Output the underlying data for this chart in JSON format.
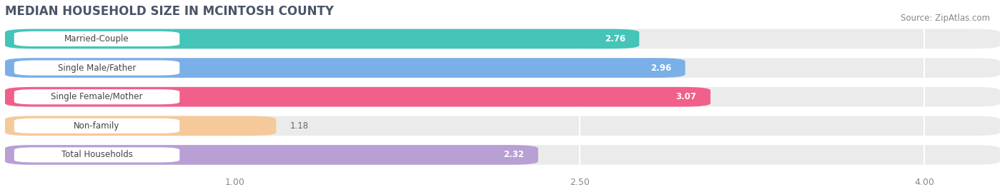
{
  "title": "MEDIAN HOUSEHOLD SIZE IN MCINTOSH COUNTY",
  "source": "Source: ZipAtlas.com",
  "categories": [
    "Married-Couple",
    "Single Male/Father",
    "Single Female/Mother",
    "Non-family",
    "Total Households"
  ],
  "values": [
    2.76,
    2.96,
    3.07,
    1.18,
    2.32
  ],
  "bar_colors": [
    "#45c4b8",
    "#7aafe8",
    "#f0608a",
    "#f5c99a",
    "#b89fd4"
  ],
  "xlim": [
    0,
    4.33
  ],
  "xmin": 0,
  "xmax": 4.33,
  "xticks": [
    1.0,
    2.5,
    4.0
  ],
  "xtick_labels": [
    "1.00",
    "2.50",
    "4.00"
  ],
  "title_fontsize": 12,
  "source_fontsize": 8.5,
  "label_fontsize": 8.5,
  "value_fontsize": 8.5,
  "background_color": "#ffffff",
  "row_bg_color": "#ebebeb",
  "grid_color": "#ffffff",
  "title_color": "#4a5568"
}
